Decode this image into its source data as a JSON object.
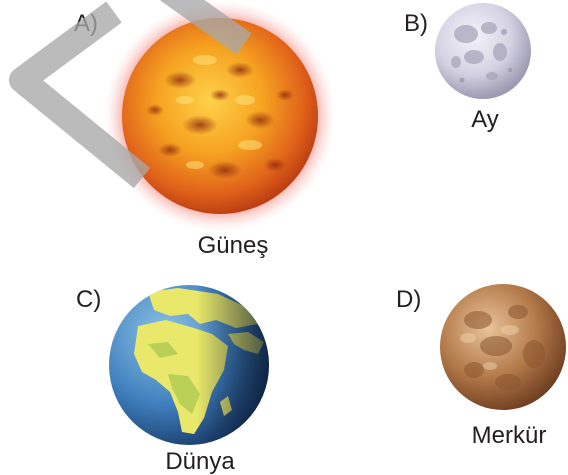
{
  "options": [
    {
      "letter": "A)",
      "name": "Güneş"
    },
    {
      "letter": "B)",
      "name": "Ay"
    },
    {
      "letter": "C)",
      "name": "Dünya"
    },
    {
      "letter": "D)",
      "name": "Merkür"
    }
  ]
}
